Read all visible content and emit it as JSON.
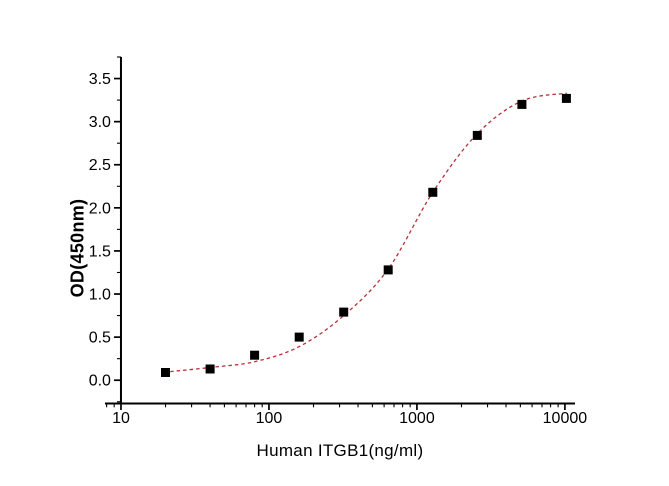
{
  "figure": {
    "background": "#ffffff",
    "marker_color": "#000000",
    "curve_color": "#b6303a"
  },
  "chart_data": {
    "type": "scatter",
    "title": "",
    "xlabel": "Human ITGB1(ng/ml)",
    "ylabel": "OD(450nm)",
    "x_scale": "log",
    "grid": false,
    "legend": "none",
    "axis_color": "#000000",
    "xlim": [
      7.8,
      11700
    ],
    "ylim": [
      -0.27,
      3.75
    ],
    "x_major_ticks": [
      10,
      100,
      1000,
      10000
    ],
    "x_tick_labels": [
      "10",
      "100",
      "1000",
      "10000"
    ],
    "x_minor_ticks": [
      8,
      9,
      20,
      30,
      40,
      50,
      60,
      70,
      80,
      90,
      200,
      300,
      400,
      500,
      600,
      700,
      800,
      900,
      2000,
      3000,
      4000,
      5000,
      6000,
      7000,
      8000,
      9000
    ],
    "y_major_ticks": [
      0,
      0.5,
      1,
      1.5,
      2,
      2.5,
      3,
      3.5
    ],
    "y_tick_labels": [
      "0.0",
      "0.5",
      "1.0",
      "1.5",
      "2.0",
      "2.5",
      "3.0",
      "3.5"
    ],
    "y_minor_ticks": [
      -0.25,
      0.25,
      0.75,
      1.25,
      1.75,
      2.25,
      2.75,
      3.25,
      3.75
    ],
    "series": [
      {
        "name": "standard-points",
        "type": "scatter",
        "marker": "square",
        "color": "#000000",
        "marker_size": 9,
        "x": [
          20,
          40,
          80,
          160,
          320,
          640,
          1280,
          2560,
          5120,
          10240
        ],
        "y": [
          0.09,
          0.13,
          0.29,
          0.5,
          0.79,
          1.28,
          2.18,
          2.84,
          3.2,
          3.27
        ]
      },
      {
        "name": "4pl-fit-curve",
        "type": "line",
        "line_style": "dashed",
        "color": "#b6303a",
        "line_width": 1.3,
        "x": [
          21.5,
          40,
          80,
          160,
          320,
          640,
          1280,
          2560,
          5120,
          10300
        ],
        "y": [
          0.1,
          0.148,
          0.215,
          0.39,
          0.75,
          1.29,
          2.18,
          2.86,
          3.24,
          3.33
        ]
      }
    ]
  }
}
